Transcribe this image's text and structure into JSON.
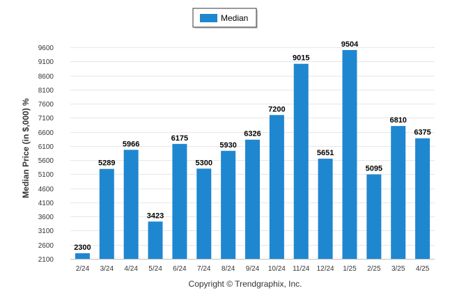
{
  "chart_data": {
    "type": "bar",
    "categories": [
      "2/24",
      "3/24",
      "4/24",
      "5/24",
      "6/24",
      "7/24",
      "8/24",
      "9/24",
      "10/24",
      "11/24",
      "12/24",
      "1/25",
      "2/25",
      "3/25",
      "4/25"
    ],
    "series": [
      {
        "name": "Median",
        "values": [
          2300,
          5289,
          5966,
          3423,
          6175,
          5300,
          5930,
          6326,
          7200,
          9015,
          5651,
          9504,
          5095,
          6810,
          6375
        ]
      }
    ],
    "ylabel": "Median Price (in $,000) %",
    "ylim": [
      2100,
      9600
    ],
    "yticks": [
      2100,
      2600,
      3100,
      3600,
      4100,
      4600,
      5100,
      5600,
      6100,
      6600,
      7100,
      7600,
      8100,
      8600,
      9100,
      9600
    ],
    "grid": true,
    "legend_position": "top-center",
    "colors": {
      "bar": "#1f87d0",
      "grid": "#e6e6e6",
      "axis": "#c0c0c0"
    }
  },
  "footer": {
    "copyright": "Copyright © Trendgraphix, Inc."
  }
}
